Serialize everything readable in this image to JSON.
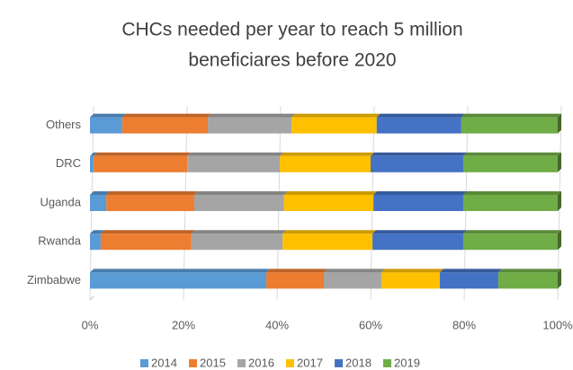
{
  "chart_data": {
    "type": "stacked_bar_100",
    "title": [
      "CHCs needed per year to reach 5 million",
      "beneficiares before 2020"
    ],
    "categories": [
      "Zimbabwe",
      "Rwanda",
      "Uganda",
      "DRC",
      "Others"
    ],
    "series": [
      {
        "name": "2014",
        "color": "#5b9bd5",
        "values": [
          37.7,
          2.3,
          3.5,
          0.8,
          6.9
        ]
      },
      {
        "name": "2015",
        "color": "#ed7d31",
        "values": [
          12.3,
          19.4,
          18.8,
          20,
          18.3
        ]
      },
      {
        "name": "2016",
        "color": "#a5a5a5",
        "values": [
          12.3,
          19.5,
          19.2,
          19.8,
          17.9
        ]
      },
      {
        "name": "2017",
        "color": "#ffc000",
        "values": [
          12.5,
          19.2,
          19.1,
          19.4,
          18.2
        ]
      },
      {
        "name": "2018",
        "color": "#4472c4",
        "values": [
          12.5,
          19.4,
          19.2,
          19.8,
          18.1
        ]
      },
      {
        "name": "2019",
        "color": "#70ad47",
        "values": [
          12.7,
          20.2,
          20.2,
          20.2,
          20.6
        ]
      }
    ],
    "xlim": [
      0,
      100
    ],
    "xticks": [
      {
        "value": 0,
        "label": "0%"
      },
      {
        "value": 20,
        "label": "20%"
      },
      {
        "value": 40,
        "label": "40%"
      },
      {
        "value": 60,
        "label": "60%"
      },
      {
        "value": 80,
        "label": "80%"
      },
      {
        "value": 100,
        "label": "100%"
      }
    ],
    "grid": true,
    "legend": "bottom"
  }
}
